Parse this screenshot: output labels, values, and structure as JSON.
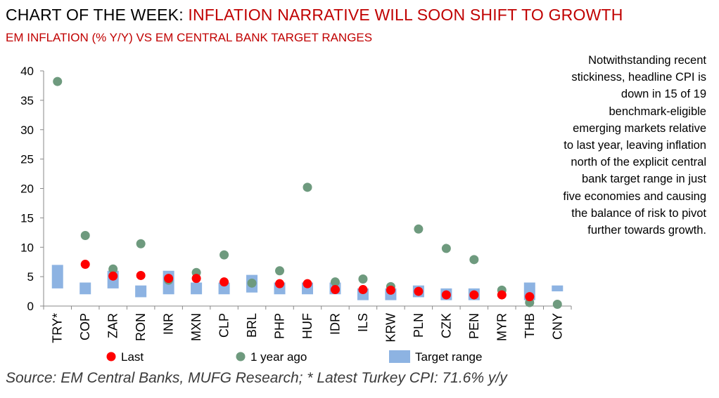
{
  "title": {
    "prefix": "CHART OF THE WEEK:",
    "highlight": "INFLATION NARRATIVE WILL SOON SHIFT TO GROWTH"
  },
  "subtitle": "EM INFLATION (% Y/Y) VS EM CENTRAL BANK TARGET RANGES",
  "commentary": "Notwithstanding recent stickiness, headline CPI is down in 15 of 19 benchmark-eligible emerging markets relative to last year, leaving inflation north of the explicit central bank target range in just five economies and causing the balance of risk to pivot further towards growth.",
  "source": "Source: EM Central Banks, MUFG Research; * Latest Turkey CPI: 71.6% y/y",
  "colors": {
    "last": "#ff0000",
    "year_ago": "#6e9a7e",
    "target_range": "#8db3e2",
    "highlight_text": "#c00000"
  },
  "chart_data": {
    "type": "scatter",
    "title": "",
    "xlabel": "",
    "ylabel": "",
    "ylim": [
      0,
      40
    ],
    "yticks": [
      0,
      5,
      10,
      15,
      20,
      25,
      30,
      35,
      40
    ],
    "grid": false,
    "legend_position": "bottom",
    "categories": [
      "TRY*",
      "COP",
      "ZAR",
      "RON",
      "INR",
      "MXN",
      "CLP",
      "BRL",
      "PHP",
      "HUF",
      "IDR",
      "ILS",
      "KRW",
      "PLN",
      "CZK",
      "PEN",
      "MYR",
      "THB",
      "CNY"
    ],
    "target_range": [
      [
        3,
        7
      ],
      [
        2,
        4
      ],
      [
        3,
        6
      ],
      [
        1.5,
        3.5
      ],
      [
        2,
        6
      ],
      [
        2,
        4
      ],
      [
        2,
        4
      ],
      [
        2.3,
        5.3
      ],
      [
        2,
        4
      ],
      [
        2,
        4
      ],
      [
        2,
        4
      ],
      [
        1,
        3
      ],
      [
        1,
        3
      ],
      [
        1.5,
        3.5
      ],
      [
        1,
        3
      ],
      [
        1,
        3
      ],
      null,
      [
        1,
        4
      ],
      [
        2.5,
        3.5
      ]
    ],
    "series": [
      {
        "name": "Last",
        "values": [
          null,
          7.1,
          5.1,
          5.2,
          4.7,
          4.7,
          4.1,
          null,
          3.8,
          3.8,
          2.8,
          2.8,
          2.7,
          2.5,
          1.9,
          1.9,
          1.9,
          1.6,
          null
        ]
      },
      {
        "name": "1 year ago",
        "values": [
          38.2,
          12.0,
          6.3,
          10.6,
          4.4,
          5.7,
          8.7,
          3.9,
          6.0,
          20.2,
          4.1,
          4.6,
          3.3,
          13.1,
          9.8,
          7.9,
          2.7,
          0.6,
          0.3
        ]
      }
    ],
    "legend": [
      {
        "label": "Last",
        "marker": "dot"
      },
      {
        "label": "1 year ago",
        "marker": "dot"
      },
      {
        "label": "Target range",
        "marker": "box"
      }
    ]
  }
}
